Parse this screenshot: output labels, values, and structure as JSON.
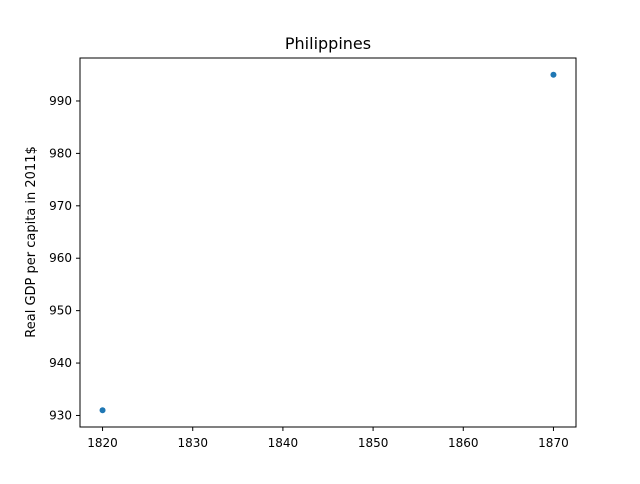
{
  "chart_data": {
    "type": "scatter",
    "title": "Philippines",
    "xlabel": "",
    "ylabel": "Real GDP per capita in 2011$",
    "x": [
      1820,
      1870
    ],
    "y": [
      931,
      995
    ],
    "xlim": [
      1817.5,
      1872.5
    ],
    "ylim": [
      927.8,
      998.2
    ],
    "xticks": [
      1820,
      1830,
      1840,
      1850,
      1860,
      1870
    ],
    "yticks": [
      930,
      940,
      950,
      960,
      970,
      980,
      990
    ],
    "grid": false,
    "marker_color": "#1f77b4"
  }
}
